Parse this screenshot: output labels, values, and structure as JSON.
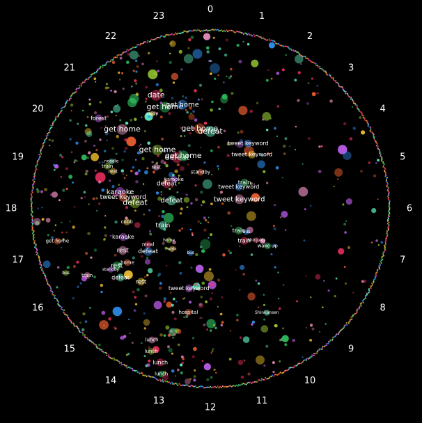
{
  "chart_data": {
    "type": "scatter",
    "projection": "polar-clock",
    "title": "",
    "hour_ticks": [
      "0",
      "1",
      "2",
      "3",
      "4",
      "5",
      "6",
      "7",
      "8",
      "9",
      "10",
      "11",
      "12",
      "13",
      "14",
      "15",
      "16",
      "17",
      "18",
      "19",
      "20",
      "21",
      "22",
      "23"
    ],
    "colors": {
      "background": "#000000",
      "dot_palette": [
        "#ff3366",
        "#33cc66",
        "#3399ff",
        "#ffcc33",
        "#cc66ff",
        "#ff6633",
        "#66ffcc",
        "#ff99cc",
        "#99cc33"
      ]
    },
    "keywords": [
      {
        "label": "date",
        "hour": 22.3,
        "r": 0.7,
        "size": 11
      },
      {
        "label": "get home",
        "hour": 22.4,
        "r": 0.62,
        "size": 11
      },
      {
        "label": "get home",
        "hour": 23.0,
        "r": 0.6,
        "size": 10
      },
      {
        "label": "stady",
        "hour": 21.9,
        "r": 0.62,
        "size": 6
      },
      {
        "label": "forest",
        "hour": 20.6,
        "r": 0.8,
        "size": 8
      },
      {
        "label": "get home",
        "hour": 23.5,
        "r": 0.45,
        "size": 11
      },
      {
        "label": "defeat",
        "hour": 0.0,
        "r": 0.43,
        "size": 11
      },
      {
        "label": "get home",
        "hour": 20.8,
        "r": 0.66,
        "size": 11
      },
      {
        "label": "get home",
        "hour": 21.2,
        "r": 0.44,
        "size": 11
      },
      {
        "label": "defeat",
        "hour": 21.8,
        "r": 0.34,
        "size": 11
      },
      {
        "label": "get home",
        "hour": 22.2,
        "r": 0.33,
        "size": 11
      },
      {
        "label": "tweet keyword",
        "hour": 2.0,
        "r": 0.42,
        "size": 8
      },
      {
        "label": "tweet keyword",
        "hour": 2.5,
        "r": 0.38,
        "size": 8
      },
      {
        "label": "karaoke",
        "hour": 20.6,
        "r": 0.26,
        "size": 7
      },
      {
        "label": "standby",
        "hour": 23.0,
        "r": 0.21,
        "size": 7
      },
      {
        "label": "noodle",
        "hour": 19.7,
        "r": 0.61,
        "size": 6
      },
      {
        "label": "rest",
        "hour": 20.5,
        "r": 0.38,
        "size": 7
      },
      {
        "label": "train",
        "hour": 19.5,
        "r": 0.62,
        "size": 7
      },
      {
        "label": "defeat",
        "hour": 20.0,
        "r": 0.28,
        "size": 9
      },
      {
        "label": "train",
        "hour": 3.5,
        "r": 0.24,
        "size": 8
      },
      {
        "label": "tweet keyword",
        "hour": 3.5,
        "r": 0.2,
        "size": 8
      },
      {
        "label": "rest",
        "hour": 19.4,
        "r": 0.58,
        "size": 7
      },
      {
        "label": "karaoke",
        "hour": 18.7,
        "r": 0.51,
        "size": 10
      },
      {
        "label": "tweet keyword",
        "hour": 18.5,
        "r": 0.49,
        "size": 9
      },
      {
        "label": "defeat",
        "hour": 18.8,
        "r": 0.22,
        "size": 10
      },
      {
        "label": "tweet keyword",
        "hour": 4.8,
        "r": 0.17,
        "size": 10
      },
      {
        "label": "defeat",
        "hour": 18.3,
        "r": 0.42,
        "size": 11
      },
      {
        "label": "train",
        "hour": 8.9,
        "r": 0.26,
        "size": 8
      },
      {
        "label": "train",
        "hour": 8.5,
        "r": 0.2,
        "size": 8
      },
      {
        "label": "bus",
        "hour": 8.2,
        "r": 0.24,
        "size": 6
      },
      {
        "label": "cobb",
        "hour": 17.4,
        "r": 0.47,
        "size": 7
      },
      {
        "label": "karaoke",
        "hour": 16.8,
        "r": 0.51,
        "size": 8
      },
      {
        "label": "get home",
        "hour": 17.2,
        "r": 0.87,
        "size": 7
      },
      {
        "label": "train",
        "hour": 16.7,
        "r": 0.28,
        "size": 9
      },
      {
        "label": "rest",
        "hour": 16.3,
        "r": 0.54,
        "size": 9
      },
      {
        "label": "home",
        "hour": 15.5,
        "r": 0.29,
        "size": 6
      },
      {
        "label": "meal",
        "hour": 16.0,
        "r": 0.4,
        "size": 7
      },
      {
        "label": "rest",
        "hour": 15.9,
        "r": 0.61,
        "size": 9
      },
      {
        "label": "defeat",
        "hour": 15.7,
        "r": 0.42,
        "size": 9
      },
      {
        "label": "walk",
        "hour": 14.9,
        "r": 0.31,
        "size": 6
      },
      {
        "label": "standby",
        "hour": 15.9,
        "r": 0.65,
        "size": 6
      },
      {
        "label": "home",
        "hour": 15.8,
        "r": 0.55,
        "size": 7
      },
      {
        "label": "defeat",
        "hour": 15.5,
        "r": 0.63,
        "size": 8
      },
      {
        "label": "train",
        "hour": 16.1,
        "r": 0.78,
        "size": 7
      },
      {
        "label": "bus",
        "hour": 16.4,
        "r": 0.88,
        "size": 6
      },
      {
        "label": "Shinjuku",
        "hour": 8.3,
        "r": 0.31,
        "size": 6
      },
      {
        "label": "wake up",
        "hour": 8.2,
        "r": 0.38,
        "size": 7
      },
      {
        "label": "bus",
        "hour": 13.6,
        "r": 0.27,
        "size": 6
      },
      {
        "label": "rest",
        "hour": 14.9,
        "r": 0.56,
        "size": 8
      },
      {
        "label": "tweet keyword",
        "hour": 13.0,
        "r": 0.46,
        "size": 8
      },
      {
        "label": "hospital",
        "hour": 12.8,
        "r": 0.59,
        "size": 7
      },
      {
        "label": "Shinkansen",
        "hour": 10.1,
        "r": 0.66,
        "size": 6
      },
      {
        "label": "lunch",
        "hour": 13.6,
        "r": 0.8,
        "size": 7
      },
      {
        "label": "lunch",
        "hour": 13.5,
        "r": 0.86,
        "size": 7
      },
      {
        "label": "lunch",
        "hour": 13.2,
        "r": 0.9,
        "size": 8
      },
      {
        "label": "lunch",
        "hour": 13.1,
        "r": 0.96,
        "size": 7
      }
    ]
  }
}
